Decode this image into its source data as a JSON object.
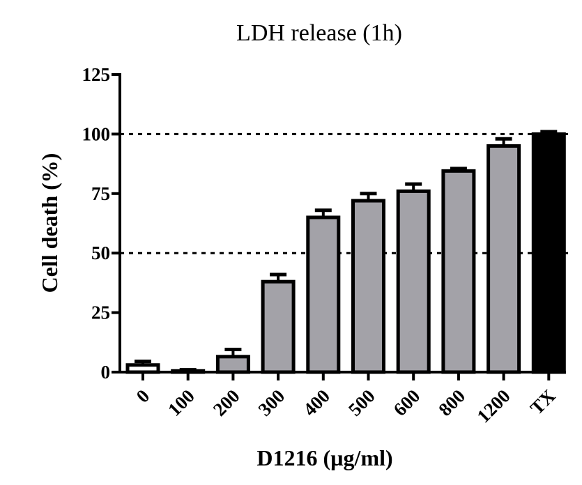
{
  "chart_data": {
    "type": "bar",
    "title": "LDH release (1h)",
    "xlabel": "D1216 (µg/ml)",
    "ylabel": "Cell death (%)",
    "ylim": [
      0,
      125
    ],
    "yticks": [
      "0",
      "25",
      "50",
      "75",
      "100",
      "125"
    ],
    "categories": [
      "0",
      "100",
      "200",
      "300",
      "400",
      "500",
      "600",
      "800",
      "1200",
      "TX"
    ],
    "values": [
      3,
      0.5,
      6.5,
      38,
      65,
      72,
      76,
      84.5,
      95,
      100
    ],
    "errors": [
      1.5,
      0.5,
      3,
      3,
      3,
      3,
      3,
      1,
      3,
      1
    ],
    "bar_fills": [
      "#ffffff",
      "#ffffff",
      "#a3a2a8",
      "#a3a2a8",
      "#a3a2a8",
      "#a3a2a8",
      "#a3a2a8",
      "#a3a2a8",
      "#a3a2a8",
      "#000000"
    ],
    "reference_lines": [
      50,
      100
    ],
    "grid": false,
    "legend": false
  }
}
